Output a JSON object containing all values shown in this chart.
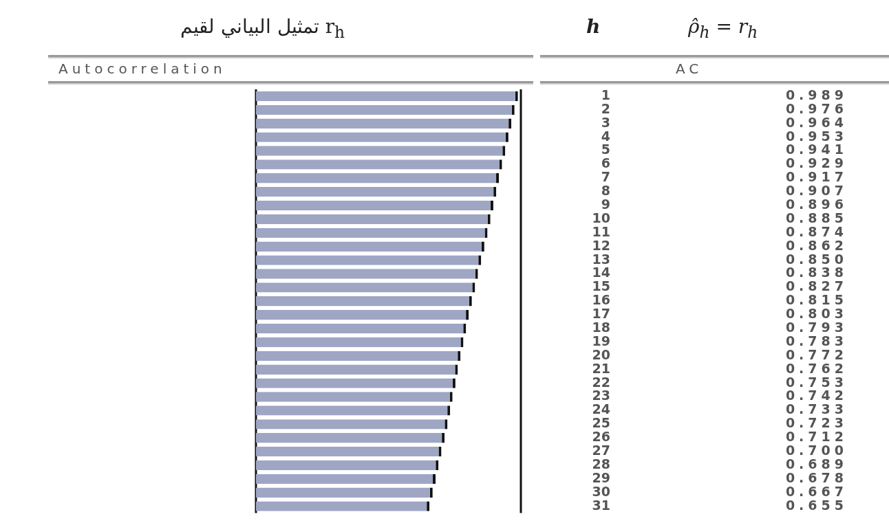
{
  "chart_data": {
    "type": "bar",
    "orientation": "horizontal",
    "title": "تمثيل البياني لقيم r$_{h}$",
    "ylabel": "h",
    "annotations": [
      "Autocorrelation",
      "AC",
      "ρ̂$_{h}$ = r$_{h}$"
    ],
    "categories": [
      "1",
      "2",
      "3",
      "4",
      "5",
      "6",
      "7",
      "8",
      "9",
      "10",
      "11",
      "12",
      "13",
      "14",
      "15",
      "16",
      "17",
      "18",
      "19",
      "20",
      "21",
      "22",
      "23",
      "24",
      "25",
      "26",
      "27",
      "28",
      "29",
      "30",
      "31"
    ],
    "values": [
      0.989,
      0.976,
      0.964,
      0.953,
      0.941,
      0.929,
      0.917,
      0.907,
      0.896,
      0.885,
      0.874,
      0.862,
      0.85,
      0.838,
      0.827,
      0.815,
      0.803,
      0.793,
      0.783,
      0.772,
      0.762,
      0.753,
      0.742,
      0.733,
      0.723,
      0.712,
      0.7,
      0.689,
      0.678,
      0.667,
      0.655
    ],
    "value_labels": [
      "0.989",
      "0.976",
      "0.964",
      "0.953",
      "0.941",
      "0.929",
      "0.917",
      "0.907",
      "0.896",
      "0.885",
      "0.874",
      "0.862",
      "0.850",
      "0.838",
      "0.827",
      "0.815",
      "0.803",
      "0.793",
      "0.783",
      "0.772",
      "0.762",
      "0.753",
      "0.742",
      "0.733",
      "0.723",
      "0.712",
      "0.700",
      "0.689",
      "0.678",
      "0.667",
      "0.655"
    ],
    "color": "#9ea6c4",
    "grid": false,
    "legend": false
  }
}
